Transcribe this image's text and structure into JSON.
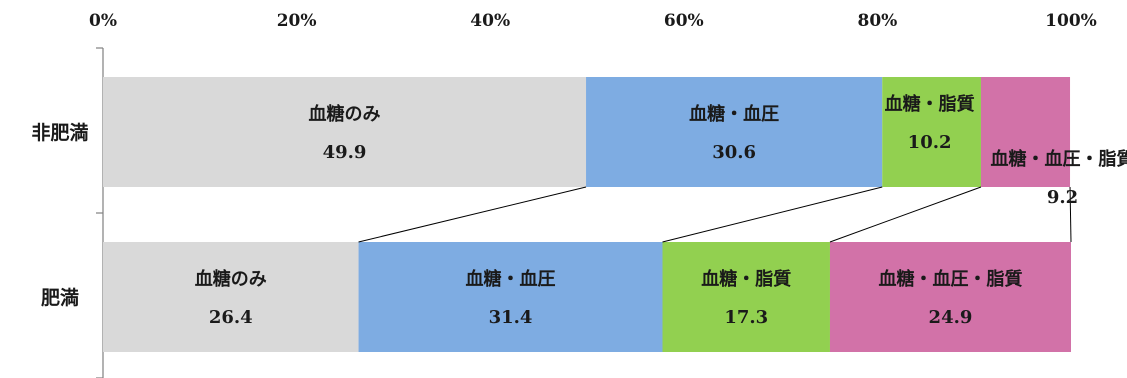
{
  "chart_data": {
    "type": "bar",
    "orientation": "horizontal",
    "stacked": true,
    "percent_stacked": true,
    "title": "",
    "xlabel": "",
    "ylabel": "",
    "xlim": [
      0,
      100
    ],
    "x_ticks": [
      "0%",
      "20%",
      "40%",
      "60%",
      "80%",
      "100%"
    ],
    "x_axis_position": "top",
    "grid": false,
    "legend": "none",
    "series_lines": true,
    "categories": [
      "非肥満",
      "肥満"
    ],
    "series": [
      {
        "name": "血糖のみ",
        "values": [
          49.9,
          26.4
        ],
        "color": "#d9d9d9"
      },
      {
        "name": "血糖・血圧",
        "values": [
          30.6,
          31.4
        ],
        "color": "#7eace2"
      },
      {
        "name": "血糖・脂質",
        "values": [
          10.2,
          17.3
        ],
        "color": "#92d050"
      },
      {
        "name": "血糖・血圧・脂質",
        "values": [
          9.2,
          24.9
        ],
        "color": "#d272a8"
      }
    ]
  }
}
